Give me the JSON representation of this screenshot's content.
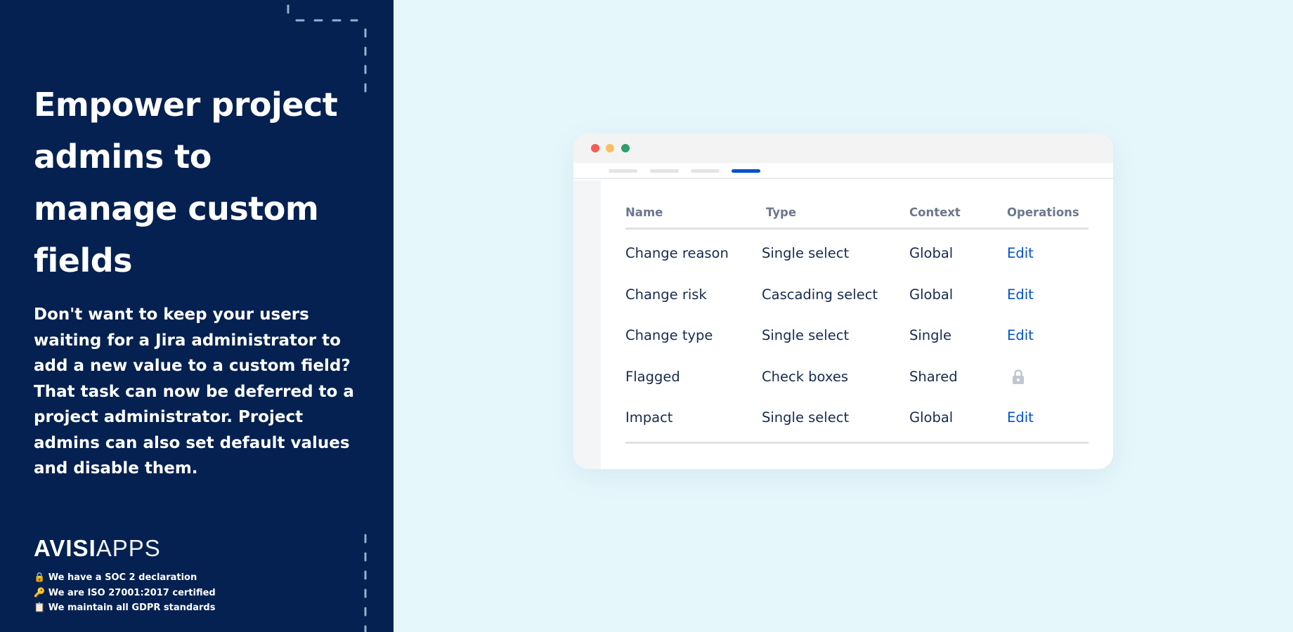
{
  "left": {
    "heading": "Empower project admins to manage custom fields",
    "paragraph": "Don't want to keep your users waiting for a Jira administrator to add a new value to a custom field? That task can now be deferred to a project administrator. Project admins can also set default values and disable them.",
    "logo": {
      "bold": "AVISI",
      "light": "APPS"
    },
    "badges": [
      {
        "icon": "🔒",
        "text": "We have a SOC 2 declaration"
      },
      {
        "icon": "🔑",
        "text": "We are ISO 27001:2017 certified"
      },
      {
        "icon": "📋",
        "text": "We maintain all GDPR standards"
      }
    ],
    "background": "#052151"
  },
  "window": {
    "traffic_lights": [
      "#f25c54",
      "#fbbd5f",
      "#2f9e6a"
    ],
    "active_tab_color": "#0052cc",
    "table": {
      "headers": [
        "Name",
        "Type",
        "Context",
        "Operations"
      ],
      "rows": [
        {
          "name": "Change reason",
          "type": "Single select",
          "context": "Global",
          "operation": "Edit"
        },
        {
          "name": "Change risk",
          "type": "Cascading select",
          "context": "Global",
          "operation": "Edit"
        },
        {
          "name": "Change type",
          "type": "Single select",
          "context": "Single",
          "operation": "Edit"
        },
        {
          "name": "Flagged",
          "type": "Check boxes",
          "context": "Shared",
          "operation": "lock-icon"
        },
        {
          "name": "Impact",
          "type": "Single select",
          "context": "Global",
          "operation": "Edit"
        }
      ]
    }
  }
}
